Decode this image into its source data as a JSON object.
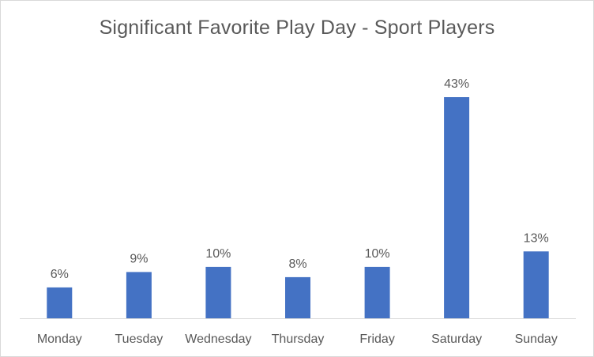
{
  "chart_data": {
    "type": "bar",
    "title": "Significant Favorite Play Day - Sport Players",
    "xlabel": "",
    "ylabel": "",
    "categories": [
      "Monday",
      "Tuesday",
      "Wednesday",
      "Thursday",
      "Friday",
      "Saturday",
      "Sunday"
    ],
    "values": [
      6,
      9,
      10,
      8,
      10,
      43,
      13
    ],
    "data_labels": [
      "6%",
      "9%",
      "10%",
      "8%",
      "10%",
      "43%",
      "13%"
    ],
    "ylim": [
      0,
      43
    ],
    "grid": false,
    "legend": "none",
    "bar_color": "#4472c4"
  }
}
